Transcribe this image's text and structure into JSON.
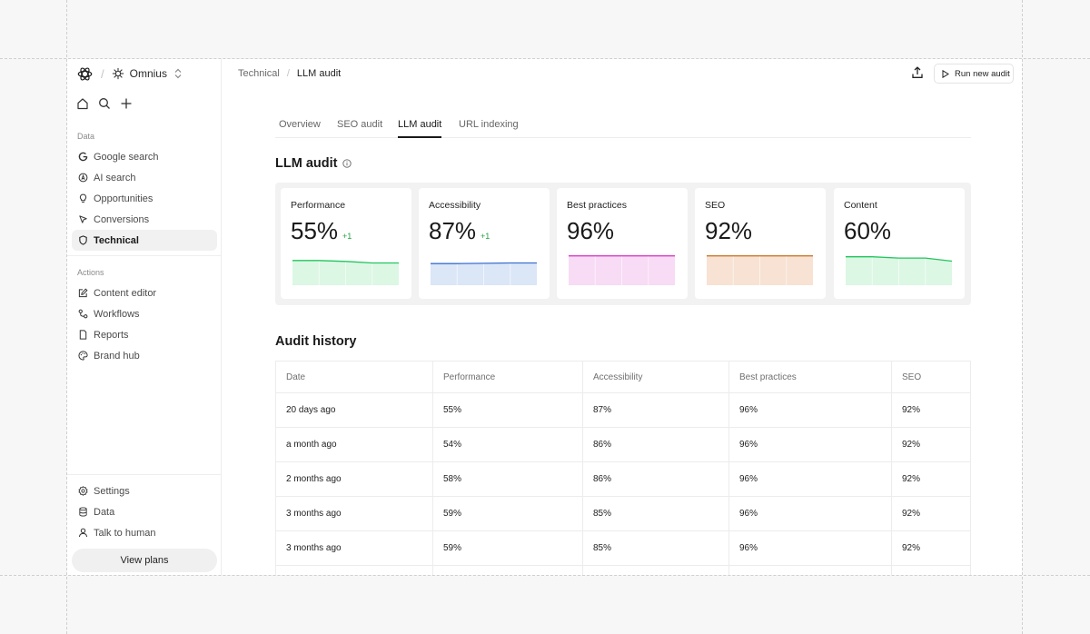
{
  "workspace": {
    "name": "Omnius"
  },
  "sidebar": {
    "data_section_label": "Data",
    "data_items": [
      {
        "label": "Google search",
        "icon": "google-icon"
      },
      {
        "label": "AI search",
        "icon": "ai-search-icon"
      },
      {
        "label": "Opportunities",
        "icon": "lightbulb-icon"
      },
      {
        "label": "Conversions",
        "icon": "cursor-icon"
      },
      {
        "label": "Technical",
        "icon": "shield-icon",
        "active": true
      }
    ],
    "actions_section_label": "Actions",
    "action_items": [
      {
        "label": "Content editor",
        "icon": "edit-icon"
      },
      {
        "label": "Workflows",
        "icon": "workflow-icon"
      },
      {
        "label": "Reports",
        "icon": "document-icon"
      },
      {
        "label": "Brand hub",
        "icon": "palette-icon"
      }
    ],
    "bottom_items": [
      {
        "label": "Settings",
        "icon": "gear-icon"
      },
      {
        "label": "Data",
        "icon": "database-icon"
      },
      {
        "label": "Talk to human",
        "icon": "user-icon"
      }
    ],
    "view_plans_label": "View plans"
  },
  "breadcrumb": {
    "parent": "Technical",
    "current": "LLM audit"
  },
  "toolbar": {
    "run_audit_label": "Run new audit"
  },
  "tabs": [
    {
      "label": "Overview"
    },
    {
      "label": "SEO audit"
    },
    {
      "label": "LLM audit",
      "active": true
    },
    {
      "label": "URL indexing"
    }
  ],
  "llm_audit": {
    "title": "LLM audit",
    "cards": [
      {
        "title": "Performance",
        "score": "55%",
        "delta": "+1",
        "color": "#22c55e",
        "fill": "#dcf7e4",
        "trend": [
          0.8,
          0.8,
          0.77,
          0.72,
          0.72
        ]
      },
      {
        "title": "Accessibility",
        "score": "87%",
        "delta": "+1",
        "color": "#3b6fd1",
        "fill": "#dbe6f7",
        "trend": [
          0.7,
          0.7,
          0.71,
          0.72,
          0.72
        ]
      },
      {
        "title": "Best practices",
        "score": "96%",
        "delta": "",
        "color": "#d640c8",
        "fill": "#f8dbf5",
        "trend": [
          0.95,
          0.95,
          0.95,
          0.95,
          0.95
        ]
      },
      {
        "title": "SEO",
        "score": "92%",
        "delta": "",
        "color": "#c97a2e",
        "fill": "#f7e2d3",
        "trend": [
          0.95,
          0.95,
          0.95,
          0.95,
          0.95
        ]
      },
      {
        "title": "Content",
        "score": "60%",
        "delta": "",
        "color": "#22c55e",
        "fill": "#dcf7e4",
        "trend": [
          0.92,
          0.92,
          0.88,
          0.88,
          0.78
        ]
      }
    ]
  },
  "audit_history": {
    "title": "Audit history",
    "columns": [
      "Date",
      "Performance",
      "Accessibility",
      "Best practices",
      "SEO"
    ],
    "rows": [
      [
        "20 days ago",
        "55%",
        "87%",
        "96%",
        "92%"
      ],
      [
        "a month ago",
        "54%",
        "86%",
        "96%",
        "92%"
      ],
      [
        "2 months ago",
        "58%",
        "86%",
        "96%",
        "92%"
      ],
      [
        "3 months ago",
        "59%",
        "85%",
        "96%",
        "92%"
      ],
      [
        "3 months ago",
        "59%",
        "85%",
        "96%",
        "92%"
      ]
    ]
  }
}
